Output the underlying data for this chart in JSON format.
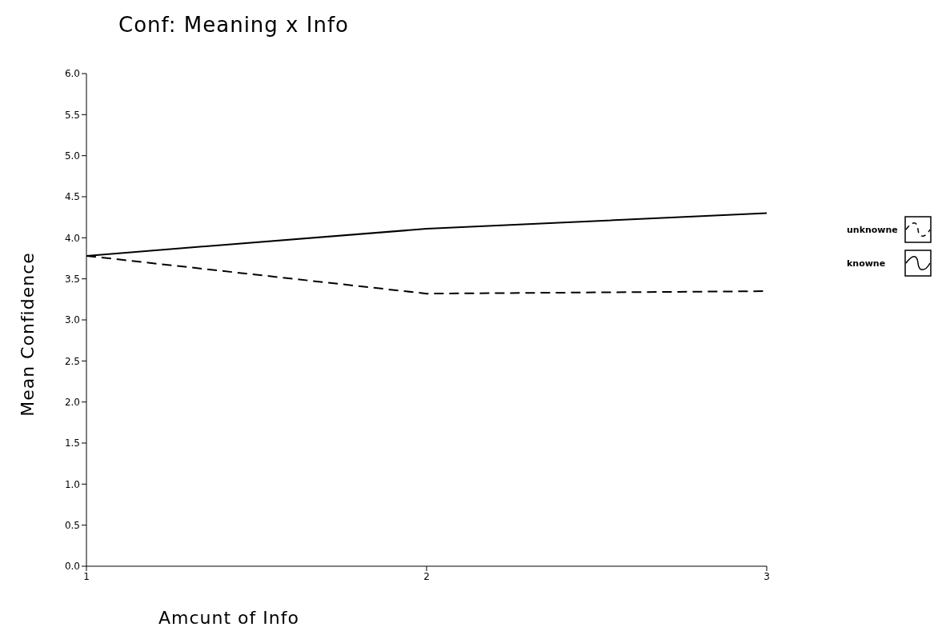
{
  "chart_data": {
    "type": "line",
    "title": "Conf: Meaning x Info",
    "xlabel": "Amcunt of Info",
    "ylabel": "Mean Confidence",
    "x": [
      1,
      2,
      3
    ],
    "xlim": [
      1,
      3
    ],
    "xticks": [
      1,
      2,
      3
    ],
    "ylim": [
      0,
      6
    ],
    "yticks": [
      {
        "value": 0,
        "label": "0.0"
      },
      {
        "value": 0.5,
        "label": "0.5"
      },
      {
        "value": 1,
        "label": "1.0"
      },
      {
        "value": 1.5,
        "label": "1.5"
      },
      {
        "value": 2,
        "label": "2.0"
      },
      {
        "value": 2.5,
        "label": "2.5"
      },
      {
        "value": 3,
        "label": "3.0"
      },
      {
        "value": 3.5,
        "label": "3.5"
      },
      {
        "value": 4,
        "label": "4.0"
      },
      {
        "value": 4.5,
        "label": "4.5"
      },
      {
        "value": 5,
        "label": "5.0"
      },
      {
        "value": 5.5,
        "label": "5.5"
      },
      {
        "value": 6,
        "label": "6.0"
      }
    ],
    "grid": false,
    "legend": "right",
    "marker": "none",
    "series": [
      {
        "name": "unknowne",
        "color": "#000000",
        "line_style": "dashed",
        "values": [
          3.78,
          3.32,
          3.35
        ]
      },
      {
        "name": "knowne",
        "color": "#000000",
        "line_style": "solid",
        "values": [
          3.78,
          4.11,
          4.3
        ]
      }
    ]
  }
}
